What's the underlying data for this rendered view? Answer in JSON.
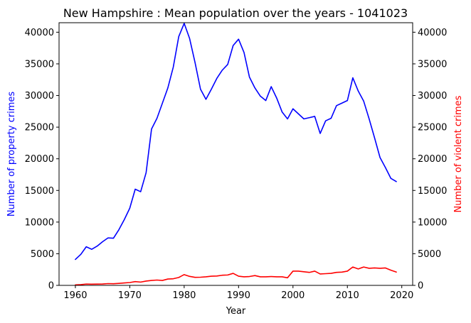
{
  "chart_data": {
    "type": "line",
    "title": "New Hampshire : Mean population over the years - 1041023",
    "xlabel": "Year",
    "ylabel_left": "Number of property crimes",
    "ylabel_right": "Number of violent crimes",
    "xlim": [
      1957,
      2022
    ],
    "ylim_left": [
      0,
      41500
    ],
    "ylim_right": [
      0,
      41500
    ],
    "x_ticks": [
      1960,
      1970,
      1980,
      1990,
      2000,
      2010,
      2020
    ],
    "y_ticks_left": [
      0,
      5000,
      10000,
      15000,
      20000,
      25000,
      30000,
      35000,
      40000
    ],
    "y_ticks_right": [
      0,
      5000,
      10000,
      15000,
      20000,
      25000,
      30000,
      35000,
      40000
    ],
    "grid": false,
    "series": [
      {
        "color": "#0000ff",
        "axis": "left",
        "x": [
          1960,
          1961,
          1962,
          1963,
          1964,
          1965,
          1966,
          1967,
          1968,
          1969,
          1970,
          1971,
          1972,
          1973,
          1974,
          1975,
          1976,
          1977,
          1978,
          1979,
          1980,
          1981,
          1982,
          1983,
          1984,
          1985,
          1986,
          1987,
          1988,
          1989,
          1990,
          1991,
          1992,
          1993,
          1994,
          1995,
          1996,
          1997,
          1998,
          1999,
          2000,
          2001,
          2002,
          2003,
          2004,
          2005,
          2006,
          2007,
          2008,
          2009,
          2010,
          2011,
          2012,
          2013,
          2014,
          2015,
          2016,
          2017,
          2018,
          2019
        ],
        "values": [
          4100,
          4900,
          6100,
          5700,
          6200,
          6900,
          7500,
          7450,
          8800,
          10400,
          12200,
          15200,
          14800,
          17800,
          24700,
          26400,
          28800,
          31200,
          34500,
          39300,
          41400,
          39000,
          35200,
          31000,
          29400,
          31000,
          32700,
          34000,
          34900,
          37900,
          38900,
          36800,
          32900,
          31200,
          29900,
          29200,
          31400,
          29600,
          27400,
          26300,
          27900,
          27100,
          26300,
          26500,
          26700,
          24000,
          26000,
          26400,
          28400,
          28800,
          29200,
          32800,
          30700,
          29100,
          26300,
          23300,
          20200,
          18600,
          16900,
          16400
        ]
      },
      {
        "color": "#ff0000",
        "axis": "right",
        "x": [
          1960,
          1961,
          1962,
          1963,
          1964,
          1965,
          1966,
          1967,
          1968,
          1969,
          1970,
          1971,
          1972,
          1973,
          1974,
          1975,
          1976,
          1977,
          1978,
          1979,
          1980,
          1981,
          1982,
          1983,
          1984,
          1985,
          1986,
          1987,
          1988,
          1989,
          1990,
          1991,
          1992,
          1993,
          1994,
          1995,
          1996,
          1997,
          1998,
          1999,
          2000,
          2001,
          2002,
          2003,
          2004,
          2005,
          2006,
          2007,
          2008,
          2009,
          2010,
          2011,
          2012,
          2013,
          2014,
          2015,
          2016,
          2017,
          2018,
          2019
        ],
        "values": [
          80,
          120,
          210,
          190,
          200,
          220,
          280,
          260,
          320,
          380,
          450,
          600,
          520,
          680,
          780,
          840,
          780,
          1000,
          1050,
          1250,
          1700,
          1420,
          1270,
          1290,
          1350,
          1450,
          1480,
          1600,
          1640,
          1900,
          1450,
          1350,
          1400,
          1550,
          1350,
          1350,
          1400,
          1350,
          1350,
          1200,
          2250,
          2250,
          2150,
          2050,
          2250,
          1800,
          1850,
          1900,
          2050,
          2100,
          2250,
          2900,
          2600,
          2900,
          2700,
          2750,
          2700,
          2750,
          2400,
          2100
        ]
      }
    ]
  }
}
